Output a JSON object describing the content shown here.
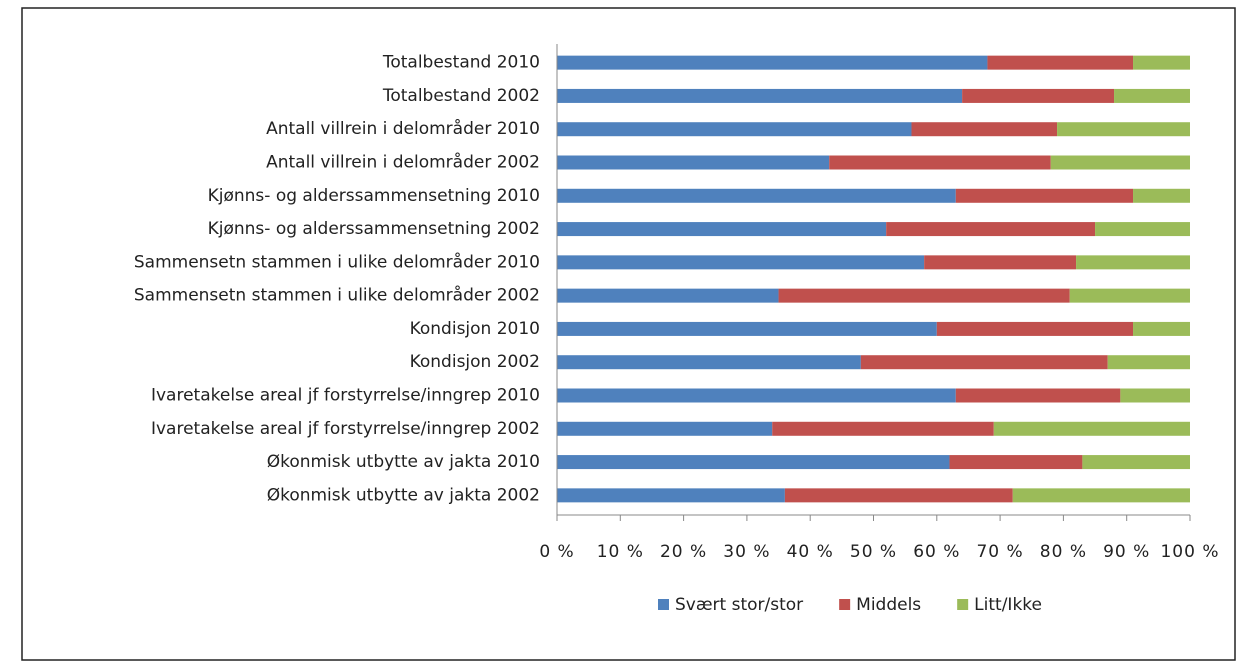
{
  "chart_data": {
    "type": "stacked-barh",
    "categories": [
      "Totalbestand 2010",
      "Totalbestand 2002",
      "Antall villrein i delområder 2010",
      "Antall villrein i delområder 2002",
      "Kjønns- og alderssammensetning 2010",
      "Kjønns- og alderssammensetning 2002",
      "Sammensetn stammen i ulike delområder 2010",
      "Sammensetn stammen i ulike delområder 2002",
      "Kondisjon 2010",
      "Kondisjon 2002",
      "Ivaretakelse areal jf forstyrrelse/inngrep 2010",
      "Ivaretakelse areal jf forstyrrelse/inngrep 2002",
      "Økonmisk utbytte av jakta 2010",
      "Økonmisk utbytte av jakta 2002"
    ],
    "series": [
      {
        "name": "Svært stor/stor",
        "color": "#4f81bd",
        "values": [
          68,
          64,
          56,
          43,
          63,
          52,
          58,
          35,
          60,
          48,
          63,
          34,
          62,
          36
        ]
      },
      {
        "name": "Middels",
        "color": "#c0504d",
        "values": [
          23,
          24,
          23,
          35,
          28,
          33,
          24,
          46,
          31,
          39,
          26,
          35,
          21,
          36
        ]
      },
      {
        "name": "Litt/Ikke",
        "color": "#9bbb59",
        "values": [
          9,
          12,
          21,
          22,
          9,
          15,
          18,
          19,
          9,
          13,
          11,
          31,
          17,
          28
        ]
      }
    ],
    "xlim": [
      0,
      100
    ],
    "xticks": [
      {
        "value": 0,
        "label": "0 %"
      },
      {
        "value": 10,
        "label": "10 %"
      },
      {
        "value": 20,
        "label": "20 %"
      },
      {
        "value": 30,
        "label": "30 %"
      },
      {
        "value": 40,
        "label": "40 %"
      },
      {
        "value": 50,
        "label": "50 %"
      },
      {
        "value": 60,
        "label": "60 %"
      },
      {
        "value": 70,
        "label": "70 %"
      },
      {
        "value": 80,
        "label": "80 %"
      },
      {
        "value": 90,
        "label": "90 %"
      },
      {
        "value": 100,
        "label": "100 %"
      }
    ],
    "legend": "bottom"
  }
}
